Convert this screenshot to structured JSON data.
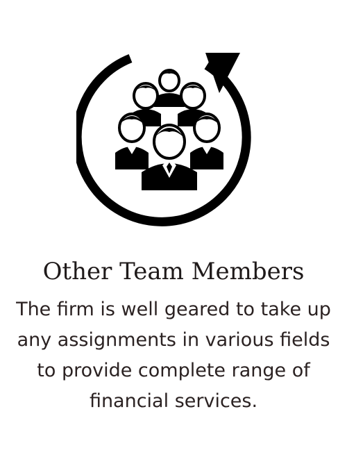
{
  "card": {
    "title": "Other Team Members",
    "description": "The firm is well geared to take up any assignments in various fields to provide complete range of financial services."
  },
  "icon": {
    "name": "team-cycle-icon",
    "color": "#000000"
  },
  "colors": {
    "background": "#ffffff",
    "title": "#1f1a1a",
    "text": "#2b2222"
  }
}
